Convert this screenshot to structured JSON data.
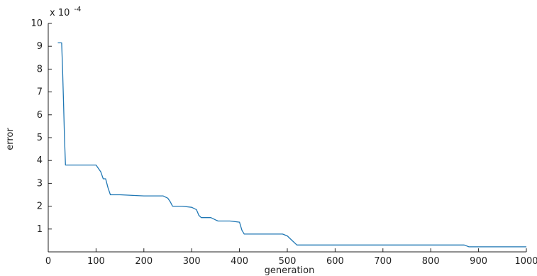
{
  "chart_data": {
    "type": "line",
    "title": "",
    "xlabel": "generation",
    "ylabel": "error",
    "y_multiplier_label": "x 10",
    "y_multiplier_exponent": "-4",
    "xlim": [
      0,
      1000
    ],
    "ylim": [
      0,
      10
    ],
    "x_ticks": [
      0,
      100,
      200,
      300,
      400,
      500,
      600,
      700,
      800,
      900,
      1000
    ],
    "y_ticks": [
      1,
      2,
      3,
      4,
      5,
      6,
      7,
      8,
      9,
      10
    ],
    "grid": false,
    "line_color": "#1f77b4",
    "series": [
      {
        "x": [
          20,
          28,
          30,
          32,
          34,
          36,
          38,
          100,
          110,
          115,
          120,
          125,
          130,
          150,
          200,
          240,
          250,
          255,
          260,
          280,
          300,
          310,
          315,
          320,
          340,
          350,
          355,
          380,
          400,
          405,
          410,
          490,
          500,
          510,
          520,
          870,
          880,
          1000
        ],
        "y": [
          9.15,
          9.15,
          8.0,
          6.5,
          5.0,
          3.8,
          3.8,
          3.8,
          3.5,
          3.2,
          3.2,
          2.8,
          2.5,
          2.5,
          2.45,
          2.45,
          2.35,
          2.2,
          2.0,
          2.0,
          1.95,
          1.85,
          1.6,
          1.5,
          1.5,
          1.4,
          1.35,
          1.35,
          1.3,
          0.95,
          0.78,
          0.78,
          0.7,
          0.5,
          0.3,
          0.3,
          0.22,
          0.22
        ]
      }
    ]
  }
}
